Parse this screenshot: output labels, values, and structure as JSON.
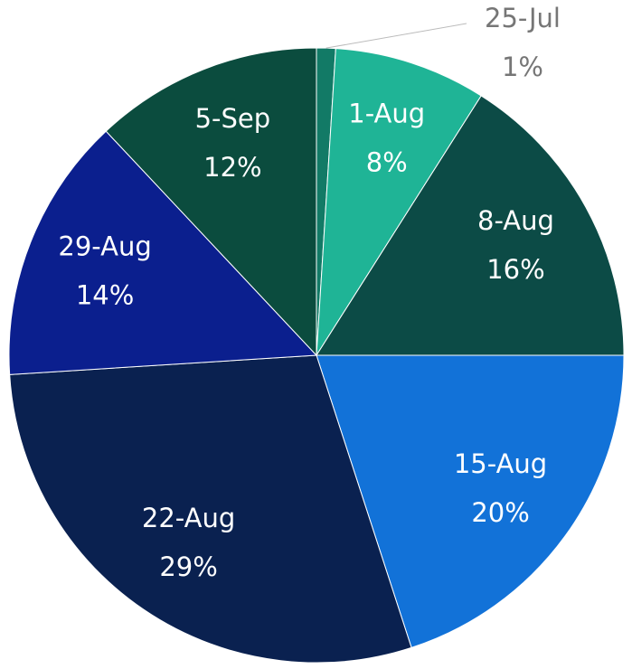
{
  "chart_data": {
    "type": "pie",
    "categories": [
      "25-Jul",
      "1-Aug",
      "8-Aug",
      "15-Aug",
      "22-Aug",
      "29-Aug",
      "5-Sep"
    ],
    "values": [
      1,
      8,
      16,
      20,
      29,
      14,
      12
    ],
    "value_labels": [
      "1%",
      "8%",
      "16%",
      "20%",
      "29%",
      "14%",
      "12%"
    ],
    "colors": [
      "#127a66",
      "#1fb496",
      "#0c4b46",
      "#1272d8",
      "#0a2150",
      "#0b1f8e",
      "#0b4c3e"
    ]
  }
}
